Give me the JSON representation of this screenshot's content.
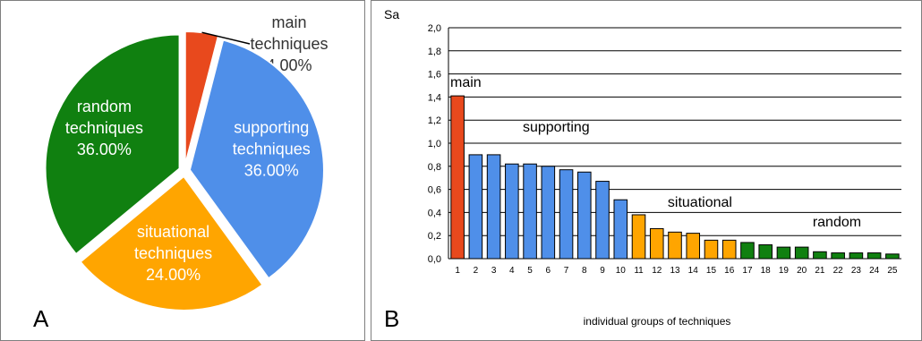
{
  "charts": [
    {
      "panel_label": "A",
      "type": "pie",
      "slices": [
        {
          "label_lines": [
            "main",
            "techniques",
            "4.00%"
          ],
          "value": 4.0,
          "color": "#e8491d",
          "text_color": "#333333",
          "label_outside": true
        },
        {
          "label_lines": [
            "supporting",
            "techniques",
            "36.00%"
          ],
          "value": 36.0,
          "color": "#4f8fe9",
          "text_color": "#ffffff",
          "label_outside": false
        },
        {
          "label_lines": [
            "situational",
            "techniques",
            "24.00%"
          ],
          "value": 24.0,
          "color": "#ffa500",
          "text_color": "#ffffff",
          "label_outside": false
        },
        {
          "label_lines": [
            "random",
            "techniques",
            "36.00%"
          ],
          "value": 36.0,
          "color": "#108010",
          "text_color": "#ffffff",
          "label_outside": false
        }
      ]
    },
    {
      "panel_label": "B",
      "type": "bar",
      "ylabel": "Sa",
      "xlabel": "individual groups of techniques",
      "ylim": [
        0,
        2.0
      ],
      "yticks": [
        "0,0",
        "0,2",
        "0,4",
        "0,6",
        "0,8",
        "1,0",
        "1,2",
        "1,4",
        "1,6",
        "1,8",
        "2,0"
      ],
      "grid": true,
      "categories": [
        "1",
        "2",
        "3",
        "4",
        "5",
        "6",
        "7",
        "8",
        "9",
        "10",
        "11",
        "12",
        "13",
        "14",
        "15",
        "16",
        "17",
        "18",
        "19",
        "20",
        "21",
        "22",
        "23",
        "24",
        "25"
      ],
      "values": [
        1.41,
        0.9,
        0.9,
        0.82,
        0.82,
        0.8,
        0.77,
        0.75,
        0.67,
        0.51,
        0.38,
        0.26,
        0.23,
        0.22,
        0.16,
        0.16,
        0.14,
        0.12,
        0.1,
        0.1,
        0.06,
        0.05,
        0.05,
        0.05,
        0.04
      ],
      "bar_groups": [
        1,
        2,
        2,
        2,
        2,
        2,
        2,
        2,
        2,
        2,
        3,
        3,
        3,
        3,
        3,
        3,
        4,
        4,
        4,
        4,
        4,
        4,
        4,
        4,
        4
      ],
      "group_colors": {
        "1": "#e8491d",
        "2": "#4f8fe9",
        "3": "#ffa500",
        "4": "#108010"
      },
      "group_labels": [
        {
          "text": "main",
          "x_category": "1",
          "y_value": 1.49
        },
        {
          "text": "supporting",
          "x_category": "5",
          "y_value": 1.1
        },
        {
          "text": "situational",
          "x_category": "13",
          "y_value": 0.45
        },
        {
          "text": "random",
          "x_category": "21",
          "y_value": 0.28
        }
      ]
    }
  ]
}
